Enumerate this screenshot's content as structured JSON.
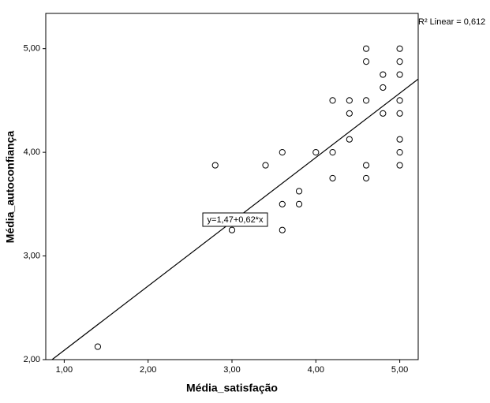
{
  "chart_data": {
    "type": "scatter",
    "x_label": "Média_satisfação",
    "y_label": "Média_autoconfiança",
    "annotation": "R² Linear = 0,612",
    "fit_label": "y=1,47+0,62*x",
    "fit": {
      "intercept": 1.47,
      "slope": 0.62
    },
    "xlim": [
      0.78,
      5.22
    ],
    "ylim": [
      2.0,
      5.34
    ],
    "xticks": [
      {
        "value": 1,
        "label": "1,00"
      },
      {
        "value": 2,
        "label": "2,00"
      },
      {
        "value": 3,
        "label": "3,00"
      },
      {
        "value": 4,
        "label": "4,00"
      },
      {
        "value": 5,
        "label": "5,00"
      }
    ],
    "yticks": [
      {
        "value": 2,
        "label": "2,00"
      },
      {
        "value": 3,
        "label": "3,00"
      },
      {
        "value": 4,
        "label": "4,00"
      },
      {
        "value": 5,
        "label": "5,00"
      }
    ],
    "color": "#000000",
    "x": [
      1.4,
      2.8,
      3.0,
      3.4,
      3.6,
      3.6,
      3.6,
      3.8,
      3.8,
      4.0,
      4.2,
      4.2,
      4.2,
      4.4,
      4.4,
      4.4,
      4.6,
      4.6,
      4.6,
      4.6,
      4.6,
      4.8,
      4.8,
      4.8,
      5.0,
      5.0,
      5.0,
      5.0,
      5.0,
      5.0,
      5.0,
      5.0
    ],
    "values": [
      2.125,
      3.875,
      3.25,
      3.875,
      4.0,
      3.5,
      3.25,
      3.625,
      3.5,
      4.0,
      4.5,
      4.0,
      3.75,
      4.5,
      4.375,
      4.125,
      5.0,
      4.875,
      4.5,
      3.875,
      3.75,
      4.75,
      4.625,
      4.375,
      5.0,
      4.875,
      4.75,
      4.5,
      4.375,
      4.125,
      4.0,
      3.875
    ]
  }
}
